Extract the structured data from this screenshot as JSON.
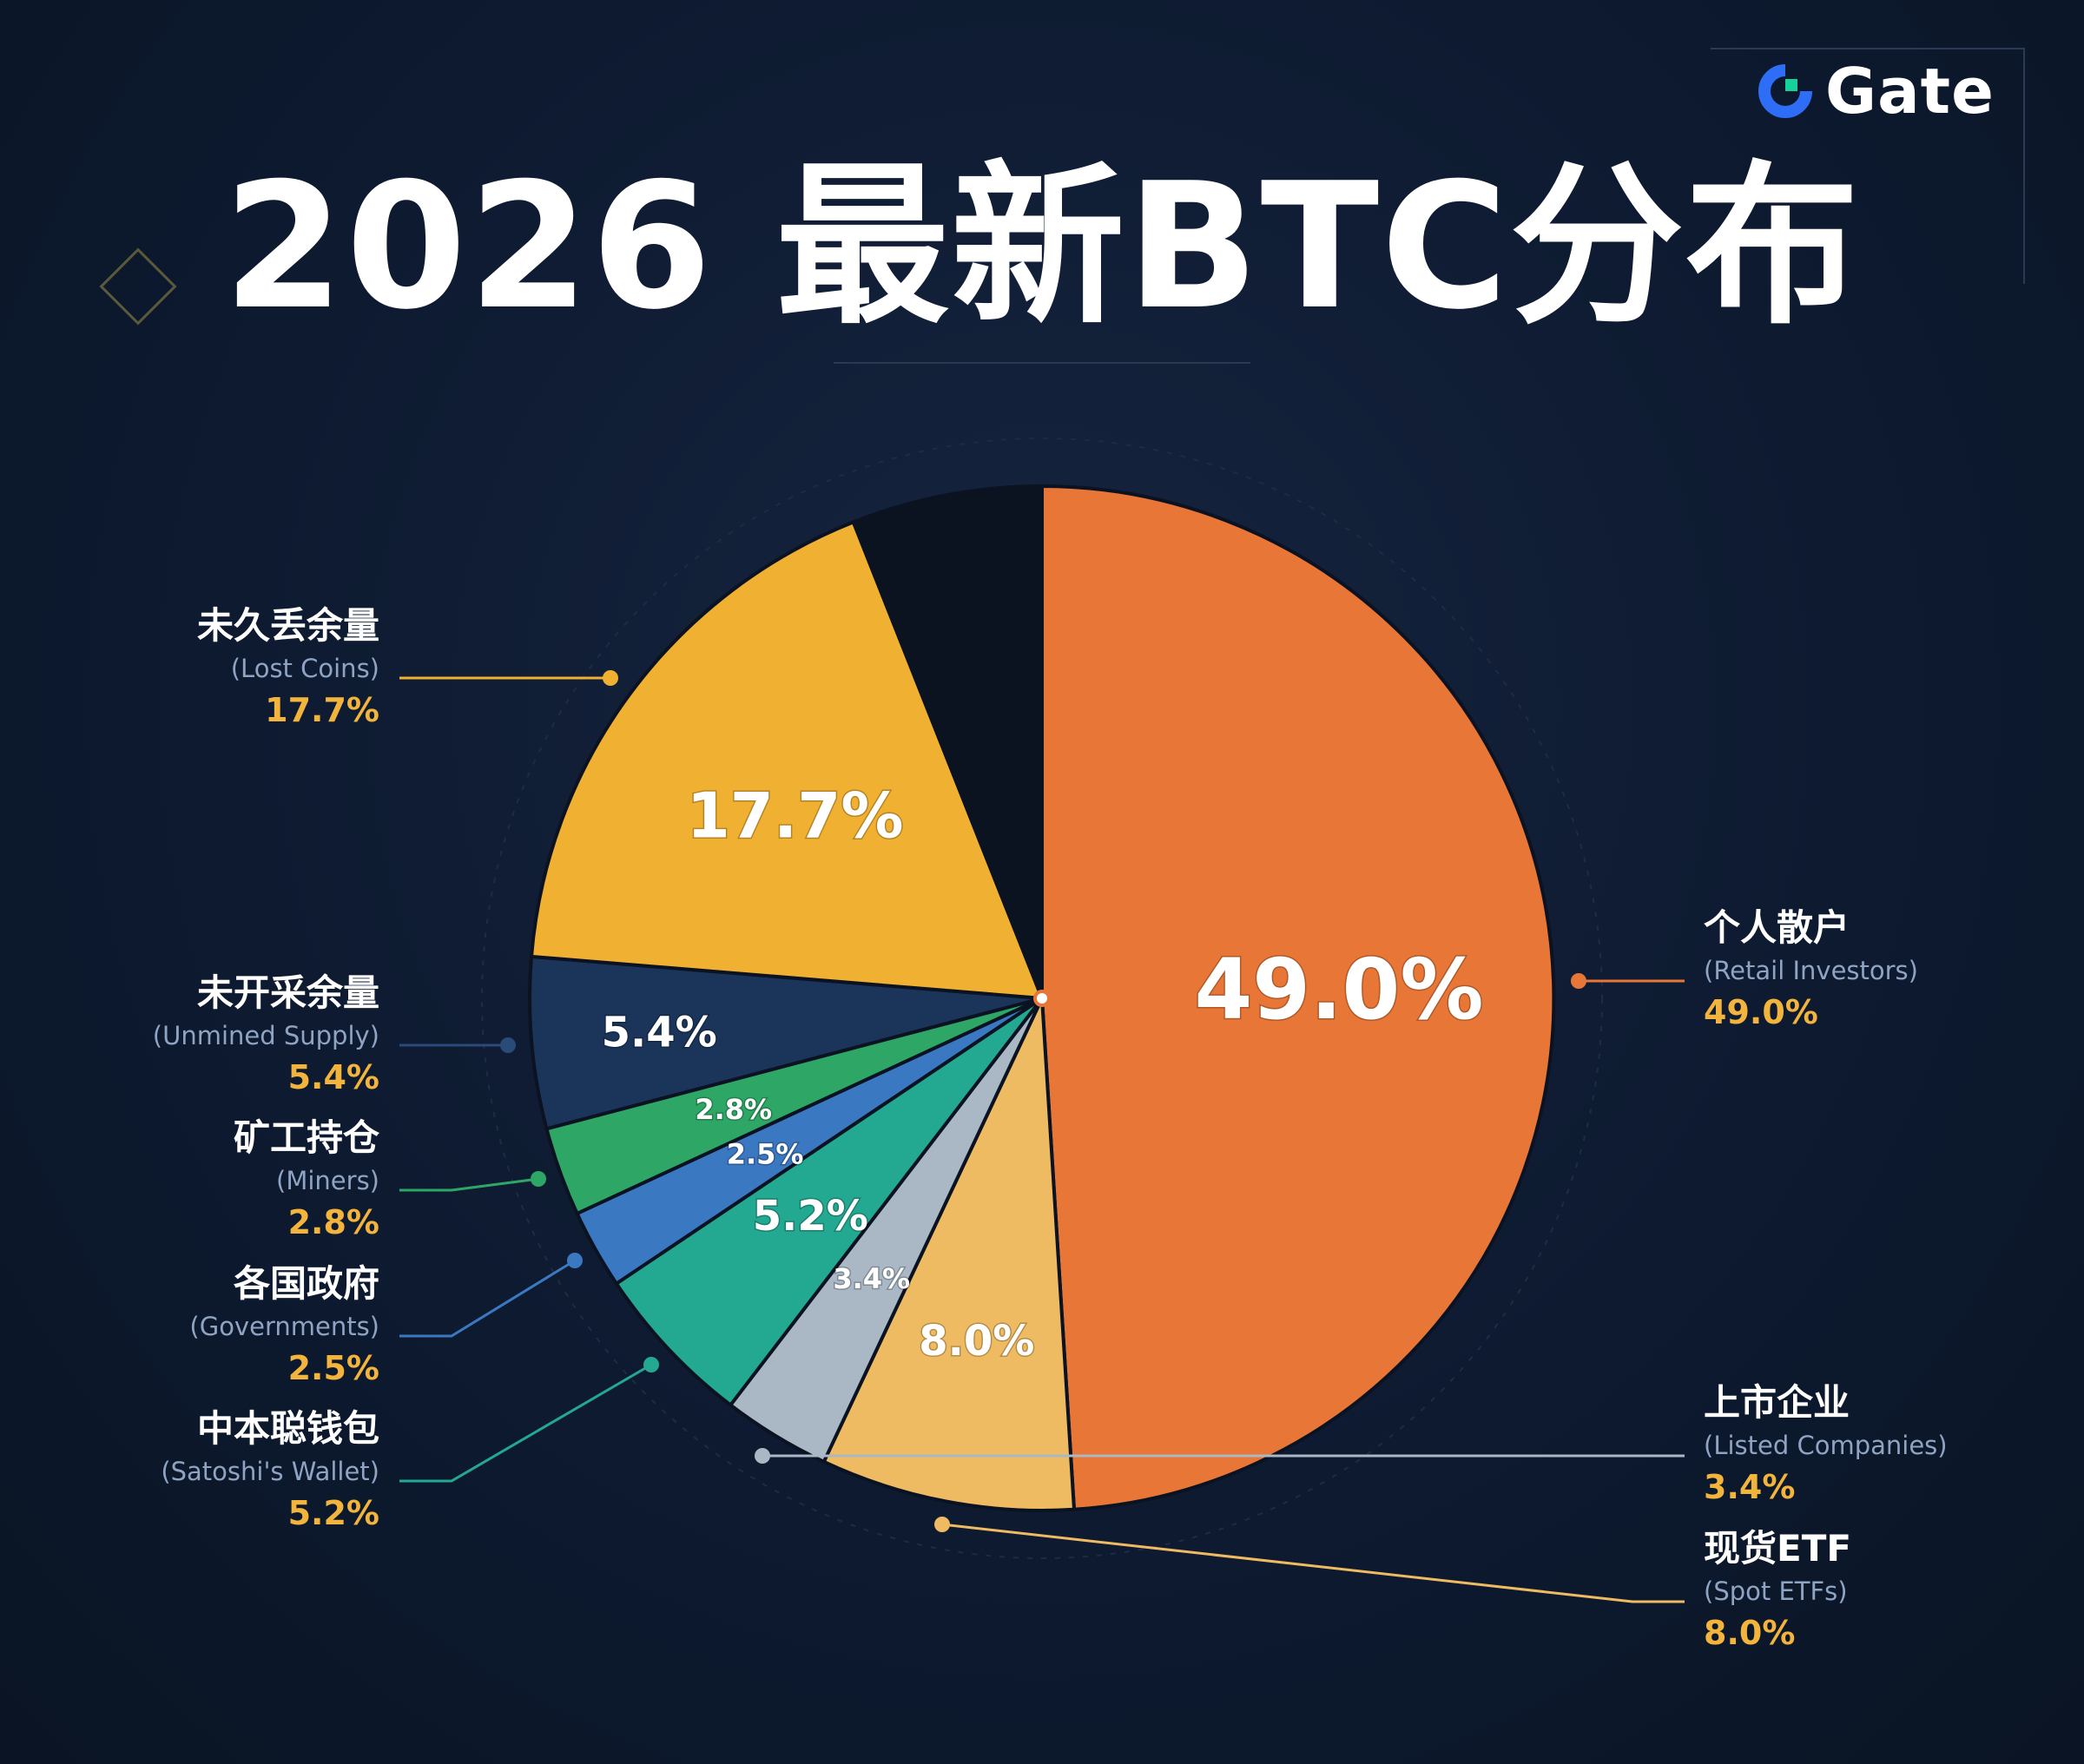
{
  "brand": {
    "name": "Gate"
  },
  "title": "2026 最新BTC分布",
  "colors": {
    "background": "#0d1a30",
    "accent": "#f2b43c",
    "retail": "#e87637",
    "etf": "#efbb62",
    "listed": "#aab8c6",
    "satoshi": "#23a891",
    "governments": "#3b78c2",
    "miners": "#2ea766",
    "unmined": "#1b3459",
    "lost": "#f0b031",
    "other": "#0c1320"
  },
  "chart_data": {
    "type": "pie",
    "title": "2026 最新BTC分布",
    "start_angle_deg": 0,
    "direction": "clockwise",
    "slices": [
      {
        "key": "retail",
        "cn": "个人散户",
        "en": "(Retail Investors)",
        "value": 49.0,
        "label": "49.0%",
        "color": "#e87637"
      },
      {
        "key": "etf",
        "cn": "现货ETF",
        "en": "(Spot ETFs)",
        "value": 8.0,
        "label": "8.0%",
        "color": "#efbb62"
      },
      {
        "key": "listed",
        "cn": "上市企业",
        "en": "(Listed Companies)",
        "value": 3.4,
        "label": "3.4%",
        "color": "#aab8c6"
      },
      {
        "key": "satoshi",
        "cn": "中本聪钱包",
        "en": "(Satoshi's Wallet)",
        "value": 5.2,
        "label": "5.2%",
        "color": "#23a891"
      },
      {
        "key": "governments",
        "cn": "各国政府",
        "en": "(Governments)",
        "value": 2.5,
        "label": "2.5%",
        "color": "#3b78c2"
      },
      {
        "key": "miners",
        "cn": "矿工持仓",
        "en": "(Miners)",
        "value": 2.8,
        "label": "2.8%",
        "color": "#2ea766"
      },
      {
        "key": "unmined",
        "cn": "未开采余量",
        "en": "(Unmined Supply)",
        "value": 5.4,
        "label": "5.4%",
        "color": "#1b3459"
      },
      {
        "key": "lost",
        "cn": "未久丢余量",
        "en": "(Lost Coins)",
        "value": 17.7,
        "label": "17.7%",
        "color": "#f0b031"
      },
      {
        "key": "other",
        "value": 6.0,
        "label": "",
        "color": "#0c1320"
      }
    ]
  }
}
